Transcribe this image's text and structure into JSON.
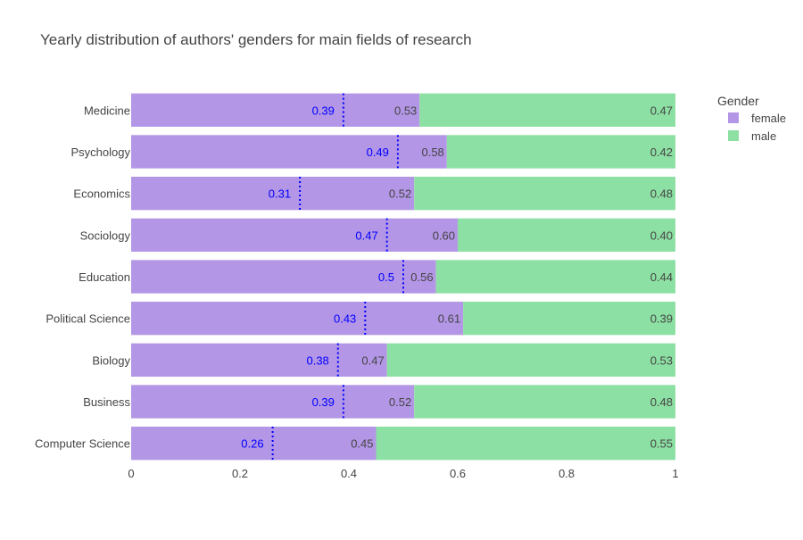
{
  "chart_data": {
    "type": "bar",
    "orientation": "horizontal",
    "barmode": "stack",
    "title": "Yearly distribution of authors' genders for main fields of research",
    "categories": [
      "Medicine",
      "Psychology",
      "Economics",
      "Sociology",
      "Education",
      "Political Science",
      "Biology",
      "Business",
      "Computer Science"
    ],
    "series": [
      {
        "name": "female",
        "color": "#b396e6",
        "values": [
          0.53,
          0.58,
          0.52,
          0.6,
          0.56,
          0.61,
          0.47,
          0.52,
          0.45
        ],
        "labels": [
          "0.53",
          "0.58",
          "0.52",
          "0.60",
          "0.56",
          "0.61",
          "0.47",
          "0.52",
          "0.45"
        ]
      },
      {
        "name": "male",
        "color": "#8de0a3",
        "values": [
          0.47,
          0.42,
          0.48,
          0.4,
          0.44,
          0.39,
          0.53,
          0.48,
          0.55
        ],
        "labels": [
          "0.47",
          "0.42",
          "0.48",
          "0.40",
          "0.44",
          "0.39",
          "0.53",
          "0.48",
          "0.55"
        ]
      }
    ],
    "markers": {
      "color": "#0000ff",
      "values": [
        0.39,
        0.49,
        0.31,
        0.47,
        0.5,
        0.43,
        0.38,
        0.39,
        0.26
      ],
      "labels": [
        "0.39",
        "0.49",
        "0.31",
        "0.47",
        "0.5",
        "0.43",
        "0.38",
        "0.39",
        "0.26"
      ]
    },
    "xlim": [
      0,
      1
    ],
    "xticks": [
      0,
      0.2,
      0.4,
      0.6,
      0.8,
      1
    ],
    "xtick_labels": [
      "0",
      "0.2",
      "0.4",
      "0.6",
      "0.8",
      "1"
    ],
    "legend": {
      "title": "Gender",
      "position": "top-right"
    },
    "grid": false
  }
}
